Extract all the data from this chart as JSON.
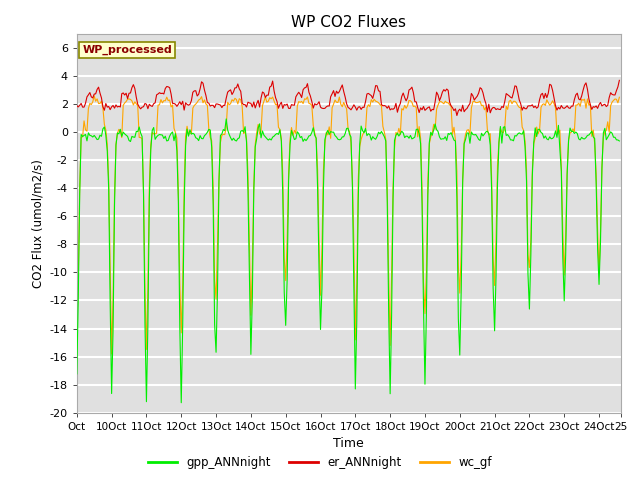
{
  "title": "WP CO2 Fluxes",
  "xlabel": "Time",
  "ylabel": "CO2 Flux (umol/m2/s)",
  "ylim": [
    -20,
    7
  ],
  "xlim_min": 0,
  "xlim_max": 375,
  "fig_bg": "#ffffff",
  "plot_bg": "#e0e0e0",
  "grid_color": "#ffffff",
  "gpp_color": "#00ee00",
  "er_color": "#dd0000",
  "wc_color": "#ffa500",
  "wp_label_color": "#8b0000",
  "wp_label_bg": "#ffffcc",
  "wp_label_edge": "#888800",
  "legend_labels": [
    "gpp_ANNnight",
    "er_ANNnight",
    "wc_gf"
  ],
  "xtick_labels": [
    "Oct",
    "10Oct",
    "11Oct",
    "12Oct",
    "13Oct",
    "14Oct",
    "15Oct",
    "16Oct",
    "17Oct",
    "18Oct",
    "19Oct",
    "20Oct",
    "21Oct",
    "22Oct",
    "23Oct",
    "24Oct",
    "25"
  ],
  "xtick_positions": [
    0,
    24,
    48,
    72,
    96,
    120,
    144,
    168,
    192,
    216,
    240,
    264,
    288,
    312,
    336,
    360,
    375
  ],
  "ytick_values": [
    -20,
    -18,
    -16,
    -14,
    -12,
    -10,
    -8,
    -6,
    -4,
    -2,
    0,
    2,
    4,
    6
  ],
  "n_days": 15,
  "pts_per_day": 24,
  "seed": 42
}
